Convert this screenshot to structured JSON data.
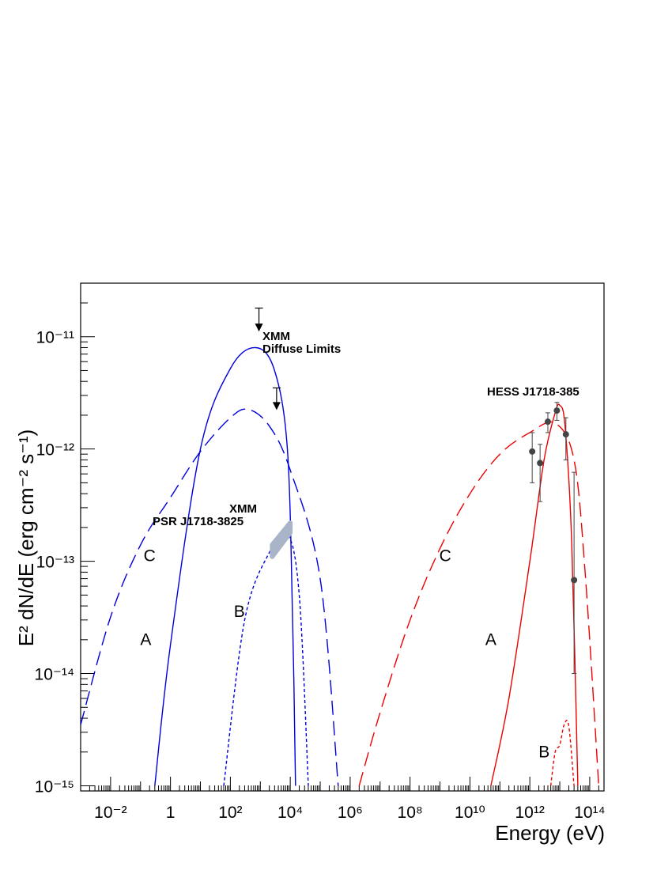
{
  "chart_data": {
    "type": "line",
    "xlabel": "Energy (eV)",
    "ylabel": "E² dN/dE (erg cm⁻² s⁻¹)",
    "x_scale": "log",
    "y_scale": "log",
    "xlim": [
      0.001,
      300000000000000.0
    ],
    "ylim": [
      9e-16,
      3e-11
    ],
    "x_tick_labels": [
      "10⁻²",
      "1",
      "10²",
      "10⁴",
      "10⁶",
      "10⁸",
      "10¹⁰",
      "10¹²",
      "10¹⁴"
    ],
    "x_tick_values": [
      0.01,
      1,
      100,
      10000,
      1000000,
      100000000,
      10000000000,
      1000000000000,
      100000000000000
    ],
    "y_tick_labels": [
      "10⁻¹⁵",
      "10⁻¹⁴",
      "10⁻¹³",
      "10⁻¹²",
      "10⁻¹¹"
    ],
    "y_tick_values": [
      1e-15,
      1e-14,
      1e-13,
      1e-12,
      1e-11
    ],
    "colors": {
      "synchrotron": "#0000dd",
      "inverse_compton": "#ee0000",
      "data_points": "#444444",
      "xmm_band": "#aab4c8"
    },
    "series": [
      {
        "name": "A",
        "component": "synchrotron",
        "dash": "solid",
        "points": [
          [
            0.3,
            1e-15
          ],
          [
            1,
            1.8e-14
          ],
          [
            10,
            1e-12
          ],
          [
            100,
            5.2e-12
          ],
          [
            700,
            8e-12
          ],
          [
            3000,
            5e-12
          ],
          [
            8000,
            1e-12
          ],
          [
            12000,
            3e-14
          ],
          [
            15000,
            1e-15
          ]
        ]
      },
      {
        "name": "B",
        "component": "synchrotron",
        "dash": "short",
        "points": [
          [
            60,
            1e-15
          ],
          [
            300,
            3e-14
          ],
          [
            2000,
            1.2e-13
          ],
          [
            8000,
            1.75e-13
          ],
          [
            20000,
            5e-14
          ],
          [
            40000,
            1e-15
          ]
        ]
      },
      {
        "name": "C",
        "component": "synchrotron",
        "dash": "long",
        "points": [
          [
            0.001,
            3.5e-15
          ],
          [
            0.01,
            3.2e-14
          ],
          [
            0.1,
            1.4e-13
          ],
          [
            1,
            3.7e-13
          ],
          [
            10,
            9.5e-13
          ],
          [
            100,
            1.9e-12
          ],
          [
            400,
            2.25e-12
          ],
          [
            2000,
            1.6e-12
          ],
          [
            10000,
            6.5e-13
          ],
          [
            100000,
            7e-14
          ],
          [
            400000,
            1e-15
          ]
        ]
      },
      {
        "name": "A",
        "component": "inverse_compton",
        "dash": "solid",
        "points": [
          [
            50000000000.0,
            1e-15
          ],
          [
            200000000000.0,
            6e-15
          ],
          [
            1000000000000.0,
            1e-13
          ],
          [
            3000000000000.0,
            8e-13
          ],
          [
            7000000000000.0,
            2.1e-12
          ],
          [
            10000000000000.0,
            2.45e-12
          ],
          [
            15000000000000.0,
            1.6e-12
          ],
          [
            25000000000000.0,
            1.5e-13
          ],
          [
            40000000000000.0,
            1e-15
          ]
        ]
      },
      {
        "name": "B",
        "component": "inverse_compton",
        "dash": "short",
        "points": [
          [
            5000000000000.0,
            1e-15
          ],
          [
            7000000000000.0,
            2e-15
          ],
          [
            10000000000000.0,
            2.3e-15
          ],
          [
            14000000000000.0,
            3.5e-15
          ],
          [
            20000000000000.0,
            3.4e-15
          ],
          [
            30000000000000.0,
            1e-15
          ]
        ]
      },
      {
        "name": "C",
        "component": "inverse_compton",
        "dash": "long",
        "points": [
          [
            2000000.0,
            1e-15
          ],
          [
            10000000.0,
            4.5e-15
          ],
          [
            100000000.0,
            3e-14
          ],
          [
            1000000000.0,
            1.3e-13
          ],
          [
            10000000000.0,
            4e-13
          ],
          [
            100000000000.0,
            9e-13
          ],
          [
            1000000000000.0,
            1.4e-12
          ],
          [
            7000000000000.0,
            1.7e-12
          ],
          [
            30000000000000.0,
            8e-13
          ],
          [
            70000000000000.0,
            8e-14
          ],
          [
            200000000000000.0,
            1e-15
          ]
        ]
      }
    ],
    "hess_points": [
      {
        "x": 1200000000000.0,
        "y": 9.5e-13,
        "ylo": 5e-13,
        "yhi": 1.4e-12
      },
      {
        "x": 2200000000000.0,
        "y": 7.5e-13,
        "ylo": 3.4e-13,
        "yhi": 1.1e-12
      },
      {
        "x": 4000000000000.0,
        "y": 1.75e-12,
        "ylo": 1.4e-12,
        "yhi": 2.1e-12
      },
      {
        "x": 8000000000000.0,
        "y": 2.2e-12,
        "ylo": 1.8e-12,
        "yhi": 2.6e-12
      },
      {
        "x": 16000000000000.0,
        "y": 1.35e-12,
        "ylo": 8e-13,
        "yhi": 1.9e-12
      },
      {
        "x": 30000000000000.0,
        "y": 6.8e-14,
        "ylo": 1e-14,
        "yhi": 6.2e-13
      }
    ],
    "xmm_upper_limits": [
      {
        "x": 900,
        "y": 1.8e-11,
        "arrow_to": 1.15e-11
      },
      {
        "x": 3500,
        "y": 3.5e-12,
        "arrow_to": 2.3e-12
      }
    ],
    "xmm_psr_band": [
      [
        2500,
        1.1e-13
      ],
      [
        10000,
        1.8e-13
      ],
      [
        10000,
        2.2e-13
      ],
      [
        2500,
        1.4e-13
      ]
    ],
    "annotations": {
      "xmm_diffuse_line1": "XMM",
      "xmm_diffuse_line2": "Diffuse Limits",
      "hess": "HESS J1718-385",
      "xmm_psr_line1": "XMM",
      "xmm_psr_line2": "PSR J1718-3825"
    },
    "curve_labels": [
      {
        "text": "C",
        "x": 0.2,
        "y": 1e-13
      },
      {
        "text": "A",
        "x": 0.15,
        "y": 1.8e-14
      },
      {
        "text": "B",
        "x": 200,
        "y": 3.2e-14
      },
      {
        "text": "C",
        "x": 1500000000.0,
        "y": 1e-13
      },
      {
        "text": "A",
        "x": 50000000000.0,
        "y": 1.8e-14
      },
      {
        "text": "B",
        "x": 3000000000000.0,
        "y": 1.8e-15
      }
    ]
  }
}
